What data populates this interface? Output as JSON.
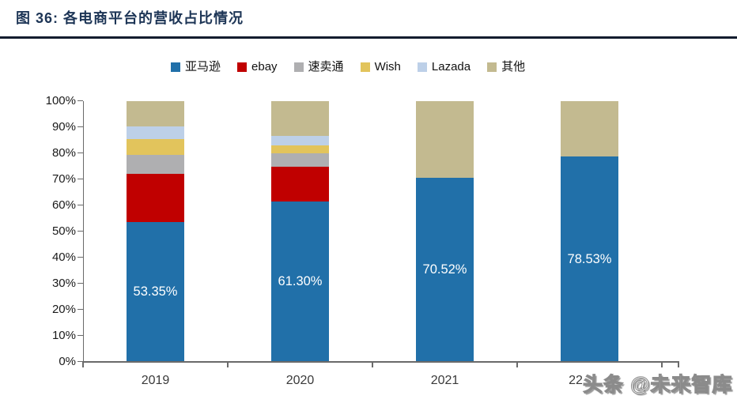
{
  "figure": {
    "title": "图 36: 各电商平台的营收占比情况",
    "watermark": "头条 @未来智库"
  },
  "chart_data": {
    "type": "bar",
    "stacked": true,
    "title": "各电商平台的营收占比情况",
    "categories": [
      "2019",
      "2020",
      "2021",
      "2022"
    ],
    "x_tick_labels_visible": [
      "2019",
      "2020",
      "2021",
      "22"
    ],
    "y_ticks": [
      "100%",
      "90%",
      "80%",
      "70%",
      "60%",
      "50%",
      "40%",
      "30%",
      "20%",
      "10%",
      "0%"
    ],
    "ylim": [
      0,
      100
    ],
    "grid": false,
    "legend_position": "top",
    "series": [
      {
        "name": "亚马逊",
        "color": "#2170A9",
        "values": [
          53.35,
          61.3,
          70.52,
          78.53
        ]
      },
      {
        "name": "ebay",
        "color": "#C00000",
        "values": [
          18.65,
          13.5,
          0,
          0
        ]
      },
      {
        "name": "速卖通",
        "color": "#AFAFB1",
        "values": [
          7.3,
          5.0,
          0,
          0
        ]
      },
      {
        "name": "Wish",
        "color": "#E2C45C",
        "values": [
          5.9,
          3.0,
          0,
          0
        ]
      },
      {
        "name": "Lazada",
        "color": "#BDD0E8",
        "values": [
          5.1,
          3.8,
          0,
          0
        ]
      },
      {
        "name": "其他",
        "color": "#C3BA90",
        "values": [
          9.7,
          13.4,
          29.48,
          21.47
        ]
      }
    ],
    "bar_labels": [
      "53.35%",
      "61.30%",
      "70.52%",
      "78.53%"
    ]
  }
}
